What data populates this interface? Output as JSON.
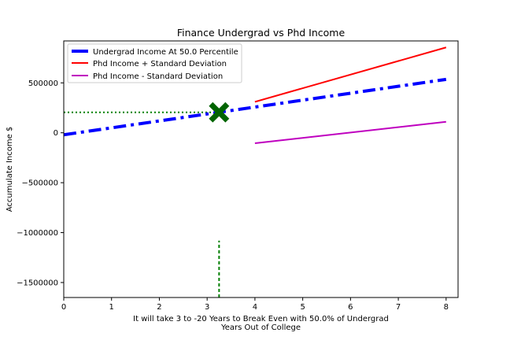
{
  "chart_data": {
    "type": "line",
    "title": "Finance Undergrad vs Phd Income",
    "xlabel": "Years Out of College",
    "ylabel": "Accumulate Income $",
    "annotation": "It will take 3 to -20 Years to Break Even with 50.0% of Undergrad",
    "xlim": [
      0,
      8.25
    ],
    "ylim": [
      -1650000,
      920000
    ],
    "xticks": [
      0,
      1,
      2,
      3,
      4,
      5,
      6,
      7,
      8
    ],
    "yticks": [
      500000,
      0,
      -500000,
      -1000000,
      -1500000
    ],
    "ytick_labels": [
      "500000",
      "0",
      "−500000",
      "−1000000",
      "−1500000"
    ],
    "grid": false,
    "legend_position": "top-left",
    "series": [
      {
        "name": "Undergrad Income At 50.0 Percentile",
        "color": "#0000ff",
        "style": "dashdot",
        "x": [
          0,
          8
        ],
        "y": [
          -20000,
          535000
        ]
      },
      {
        "name": "Phd Income + Standard Deviation",
        "color": "#ff0000",
        "style": "solid",
        "x": [
          4,
          8
        ],
        "y": [
          310000,
          855000
        ]
      },
      {
        "name": "Phd Income - Standard Deviation",
        "color": "#bf00bf",
        "style": "solid",
        "x": [
          4,
          8
        ],
        "y": [
          -105000,
          110000
        ]
      }
    ],
    "reference_lines": [
      {
        "orientation": "horizontal",
        "color": "#008000",
        "style": "dotted",
        "y": 205000,
        "x_range": [
          0,
          3.25
        ]
      },
      {
        "orientation": "vertical",
        "color": "#008000",
        "style": "dashed",
        "x": 3.25,
        "y_range": [
          -1650000,
          -1080000
        ]
      }
    ],
    "marker": {
      "shape": "X",
      "color": "#006400",
      "x": 3.25,
      "y": 205000
    }
  }
}
